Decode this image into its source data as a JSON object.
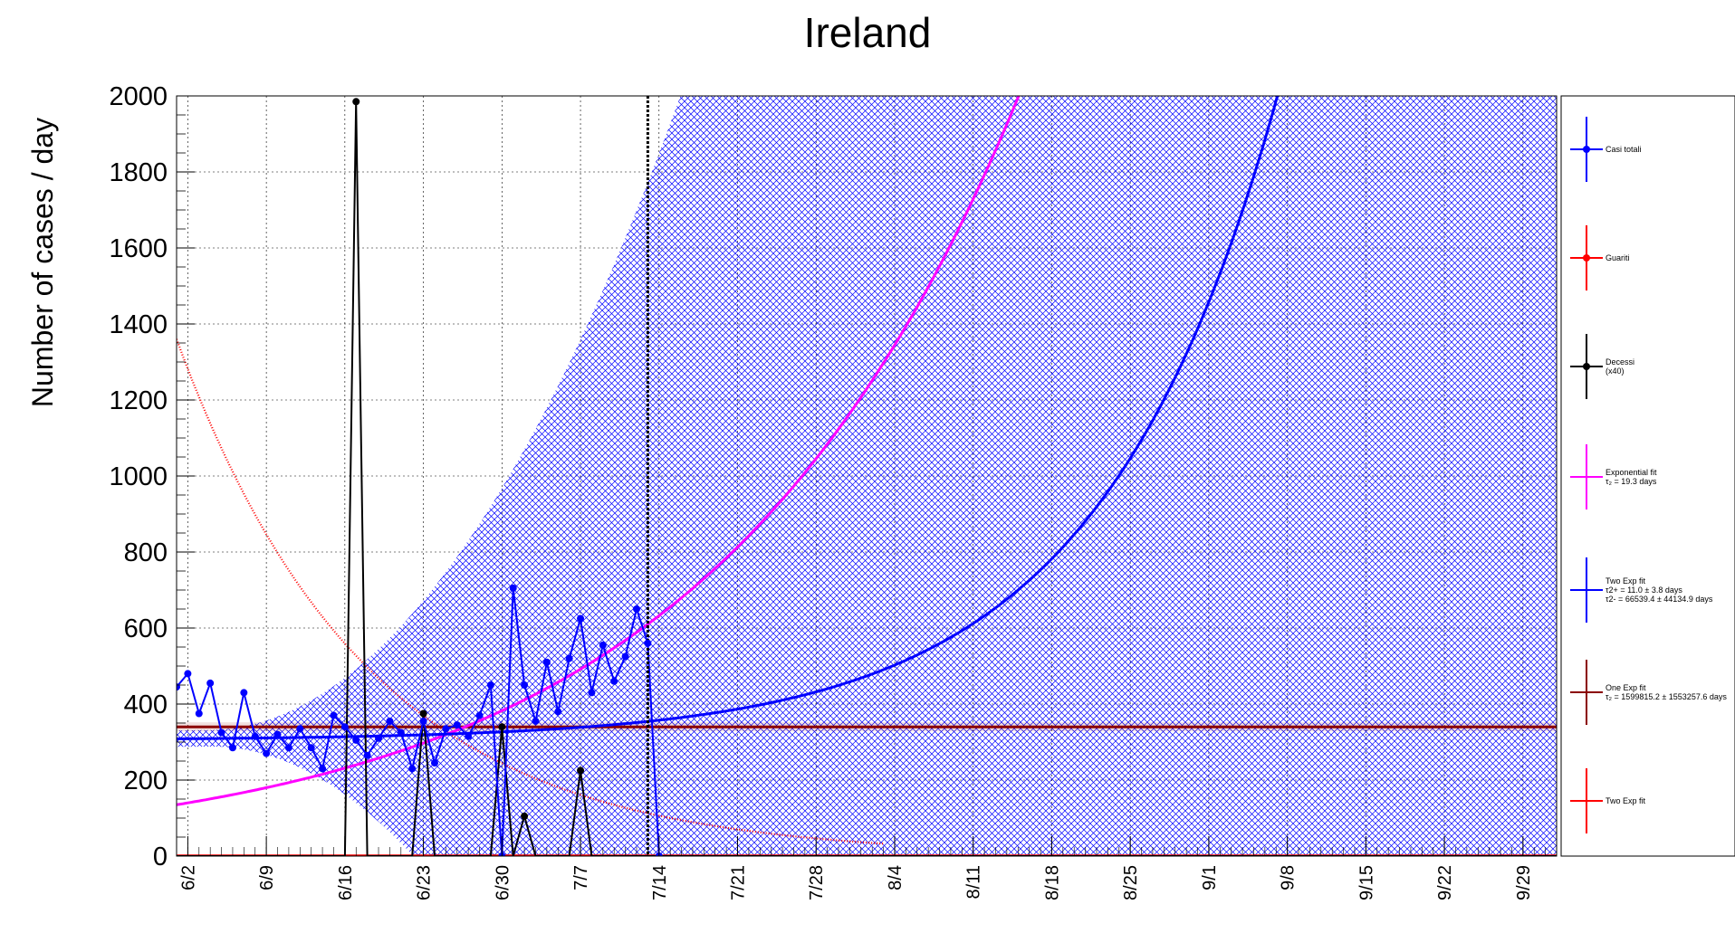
{
  "chart_data": {
    "type": "line",
    "title": "Ireland",
    "xlabel": "",
    "ylabel": "Number of cases / day",
    "ylim": [
      0,
      2000
    ],
    "yticks": [
      0,
      200,
      400,
      600,
      800,
      1000,
      1200,
      1400,
      1600,
      1800,
      2000
    ],
    "x_start": "6/1",
    "x_end": "10/2",
    "xtick_labels": [
      "6/2",
      "6/9",
      "6/16",
      "6/23",
      "6/30",
      "7/7",
      "7/14",
      "7/21",
      "7/28",
      "8/4",
      "8/11",
      "8/18",
      "8/25",
      "9/1",
      "9/8",
      "9/15",
      "9/22",
      "9/29"
    ],
    "grid": true,
    "fit_cutoff_date": "7/13",
    "series": [
      {
        "name": "Casi totali",
        "color": "#0000ff",
        "dates": [
          "6/1",
          "6/2",
          "6/3",
          "6/4",
          "6/5",
          "6/6",
          "6/7",
          "6/8",
          "6/9",
          "6/10",
          "6/11",
          "6/12",
          "6/13",
          "6/14",
          "6/15",
          "6/16",
          "6/17",
          "6/18",
          "6/19",
          "6/20",
          "6/21",
          "6/22",
          "6/23",
          "6/24",
          "6/25",
          "6/26",
          "6/27",
          "6/28",
          "6/29",
          "6/30",
          "7/1",
          "7/2",
          "7/3",
          "7/4",
          "7/5",
          "7/6",
          "7/7",
          "7/8",
          "7/9",
          "7/10",
          "7/11",
          "7/12",
          "7/13",
          "7/14"
        ],
        "values": [
          445,
          480,
          375,
          455,
          325,
          285,
          430,
          315,
          270,
          320,
          285,
          335,
          285,
          230,
          370,
          340,
          305,
          265,
          310,
          355,
          325,
          230,
          355,
          245,
          335,
          345,
          315,
          370,
          450,
          0,
          705,
          450,
          355,
          510,
          380,
          520,
          625,
          430,
          555,
          460,
          525,
          650,
          560,
          0
        ]
      },
      {
        "name": "Guariti",
        "color": "#ff0000",
        "dates": [
          "6/1",
          "10/2"
        ],
        "values": [
          0,
          0
        ]
      },
      {
        "name": "Decessi",
        "legend_note": "(x40)",
        "color": "#000000",
        "dates": [
          "6/1",
          "6/15",
          "6/16",
          "6/17",
          "6/18",
          "6/19",
          "6/20",
          "6/21",
          "6/22",
          "6/23",
          "6/24",
          "6/25",
          "6/26",
          "6/27",
          "6/28",
          "6/29",
          "6/30",
          "7/1",
          "7/2",
          "7/3",
          "7/4",
          "7/5",
          "7/6",
          "7/7",
          "7/8",
          "7/9",
          "7/10",
          "7/11",
          "7/12",
          "7/13",
          "10/2"
        ],
        "values": [
          0,
          0,
          0,
          1985,
          0,
          0,
          0,
          0,
          0,
          375,
          0,
          0,
          0,
          0,
          0,
          0,
          340,
          0,
          105,
          0,
          0,
          0,
          0,
          225,
          0,
          0,
          0,
          0,
          0,
          0,
          0
        ]
      },
      {
        "name": "Exponential fit",
        "legend_detail": "τ₂ = 19.3  days",
        "color": "#ff00ff",
        "model": "exponential",
        "y_at_start": 135,
        "doubling_days": 19.3
      },
      {
        "name": "Two Exp fit",
        "legend_detail": [
          "τ2+ = 11.0 ± 3.8 days",
          "τ2- = 66539.4 ± 44134.9 days"
        ],
        "color": "#0000ff",
        "model": "two-exponential",
        "baseline": 305,
        "growth_amplitude": 3.5,
        "doubling_days": 11.0
      },
      {
        "name": "One Exp fit",
        "legend_detail": "τ₂ = 1599815.2  ± 1553257.6 days",
        "color": "#8b0000",
        "model": "constant",
        "value": 340
      },
      {
        "name": "Two Exp fit",
        "color": "#ff0000",
        "model": "decaying-exponential",
        "y_at_start": 1360,
        "halving_days": 11.7
      }
    ]
  }
}
